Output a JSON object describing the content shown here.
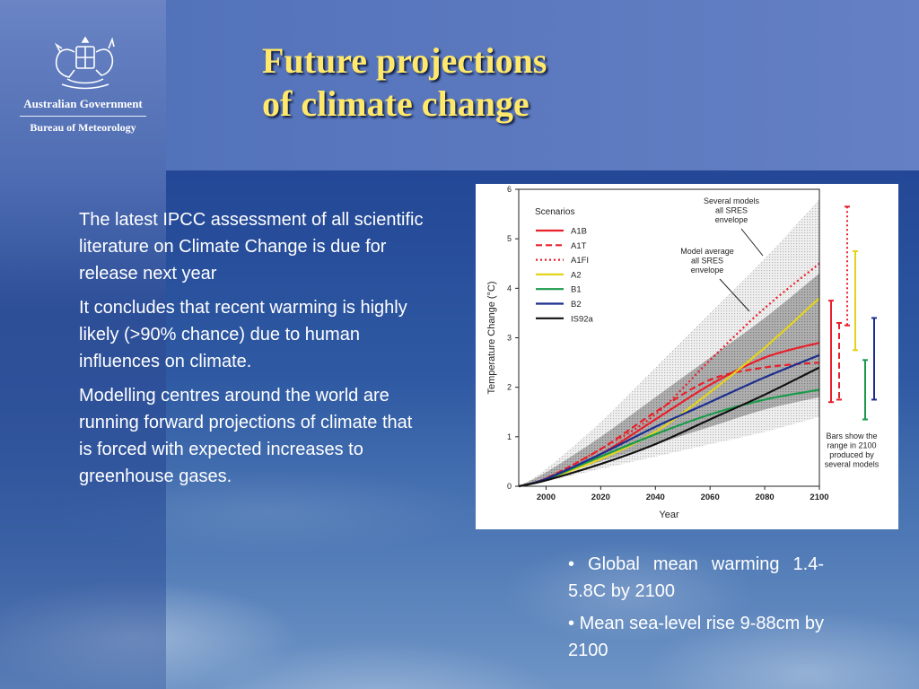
{
  "branding": {
    "government": "Australian Government",
    "agency": "Bureau of Meteorology"
  },
  "slide": {
    "title_line1": "Future projections",
    "title_line2": "of climate change",
    "paragraphs": [
      "The latest IPCC assessment of all scientific literature on Climate Change is due for release next year",
      "It concludes that recent warming is highly likely (>90% chance) due to human influences on climate.",
      "Modelling centres around the world are running forward projections of climate that is forced with expected increases to greenhouse gases."
    ],
    "bullets": [
      "• Global mean warming 1.4-5.8C by 2100",
      "• Mean sea-level rise 9-88cm by 2100"
    ]
  },
  "chart_data": {
    "type": "line",
    "xlabel": "Year",
    "ylabel": "Temperature Change (°C)",
    "xlim": [
      1990,
      2100
    ],
    "ylim": [
      0,
      6
    ],
    "x_ticks": [
      "2000",
      "2020",
      "2040",
      "2060",
      "2080",
      "2100"
    ],
    "y_ticks": [
      "0",
      "1",
      "2",
      "3",
      "4",
      "5",
      "6"
    ],
    "legend_title": "Scenarios",
    "legend_position": "top-left",
    "annotations": {
      "several_models": "Several models all SRES envelope",
      "model_average": "Model average all SRES envelope",
      "bars_note": "Bars show the range in 2100 produced by several models"
    },
    "envelopes": {
      "x": [
        1990,
        2000,
        2020,
        2040,
        2060,
        2080,
        2100
      ],
      "outer_low": [
        0,
        0.1,
        0.35,
        0.6,
        0.85,
        1.1,
        1.4
      ],
      "outer_high": [
        0,
        0.35,
        1.3,
        2.4,
        3.5,
        4.6,
        5.8
      ],
      "inner_low": [
        0,
        0.15,
        0.5,
        0.85,
        1.2,
        1.55,
        1.8
      ],
      "inner_high": [
        0,
        0.28,
        1.0,
        1.8,
        2.6,
        3.4,
        4.3
      ]
    },
    "series": [
      {
        "name": "A1B",
        "color": "#e8202a",
        "dash": "solid",
        "x": [
          1990,
          2000,
          2020,
          2040,
          2060,
          2080,
          2100
        ],
        "values": [
          0,
          0.15,
          0.65,
          1.35,
          2.05,
          2.6,
          2.9
        ]
      },
      {
        "name": "A1T",
        "color": "#e8202a",
        "dash": "dashed",
        "x": [
          1990,
          2000,
          2020,
          2040,
          2060,
          2080,
          2100
        ],
        "values": [
          0,
          0.16,
          0.75,
          1.5,
          2.15,
          2.4,
          2.5
        ]
      },
      {
        "name": "A1FI",
        "color": "#e8202a",
        "dash": "dotted",
        "x": [
          1990,
          2000,
          2020,
          2040,
          2060,
          2080,
          2100
        ],
        "values": [
          0,
          0.16,
          0.75,
          1.45,
          2.55,
          3.6,
          4.5
        ]
      },
      {
        "name": "A2",
        "color": "#e3d41a",
        "dash": "solid",
        "x": [
          1990,
          2000,
          2020,
          2040,
          2060,
          2080,
          2100
        ],
        "values": [
          0,
          0.14,
          0.55,
          1.1,
          1.9,
          2.8,
          3.8
        ]
      },
      {
        "name": "B1",
        "color": "#1a9a4a",
        "dash": "solid",
        "x": [
          1990,
          2000,
          2020,
          2040,
          2060,
          2080,
          2100
        ],
        "values": [
          0,
          0.14,
          0.6,
          1.05,
          1.45,
          1.75,
          1.95
        ]
      },
      {
        "name": "B2",
        "color": "#1c2f8f",
        "dash": "solid",
        "x": [
          1990,
          2000,
          2020,
          2040,
          2060,
          2080,
          2100
        ],
        "values": [
          0,
          0.15,
          0.65,
          1.2,
          1.7,
          2.2,
          2.65
        ]
      },
      {
        "name": "IS92a",
        "color": "#111111",
        "dash": "solid",
        "x": [
          1990,
          2000,
          2020,
          2040,
          2060,
          2080,
          2100
        ],
        "values": [
          0,
          0.12,
          0.45,
          0.85,
          1.35,
          1.85,
          2.4
        ]
      }
    ],
    "range_bars_2100": [
      {
        "scenario": "A1B",
        "color": "#e8202a",
        "dash": "solid",
        "low": 1.7,
        "high": 3.75
      },
      {
        "scenario": "A1T",
        "color": "#e8202a",
        "dash": "dashed",
        "low": 1.75,
        "high": 3.3
      },
      {
        "scenario": "A1FI",
        "color": "#e8202a",
        "dash": "dotted",
        "low": 3.25,
        "high": 5.65
      },
      {
        "scenario": "A2",
        "color": "#e3d41a",
        "dash": "solid",
        "low": 2.75,
        "high": 4.75
      },
      {
        "scenario": "B1",
        "color": "#1a9a4a",
        "dash": "solid",
        "low": 1.35,
        "high": 2.55
      },
      {
        "scenario": "B2",
        "color": "#1c2f8f",
        "dash": "solid",
        "low": 1.75,
        "high": 3.4
      }
    ]
  }
}
